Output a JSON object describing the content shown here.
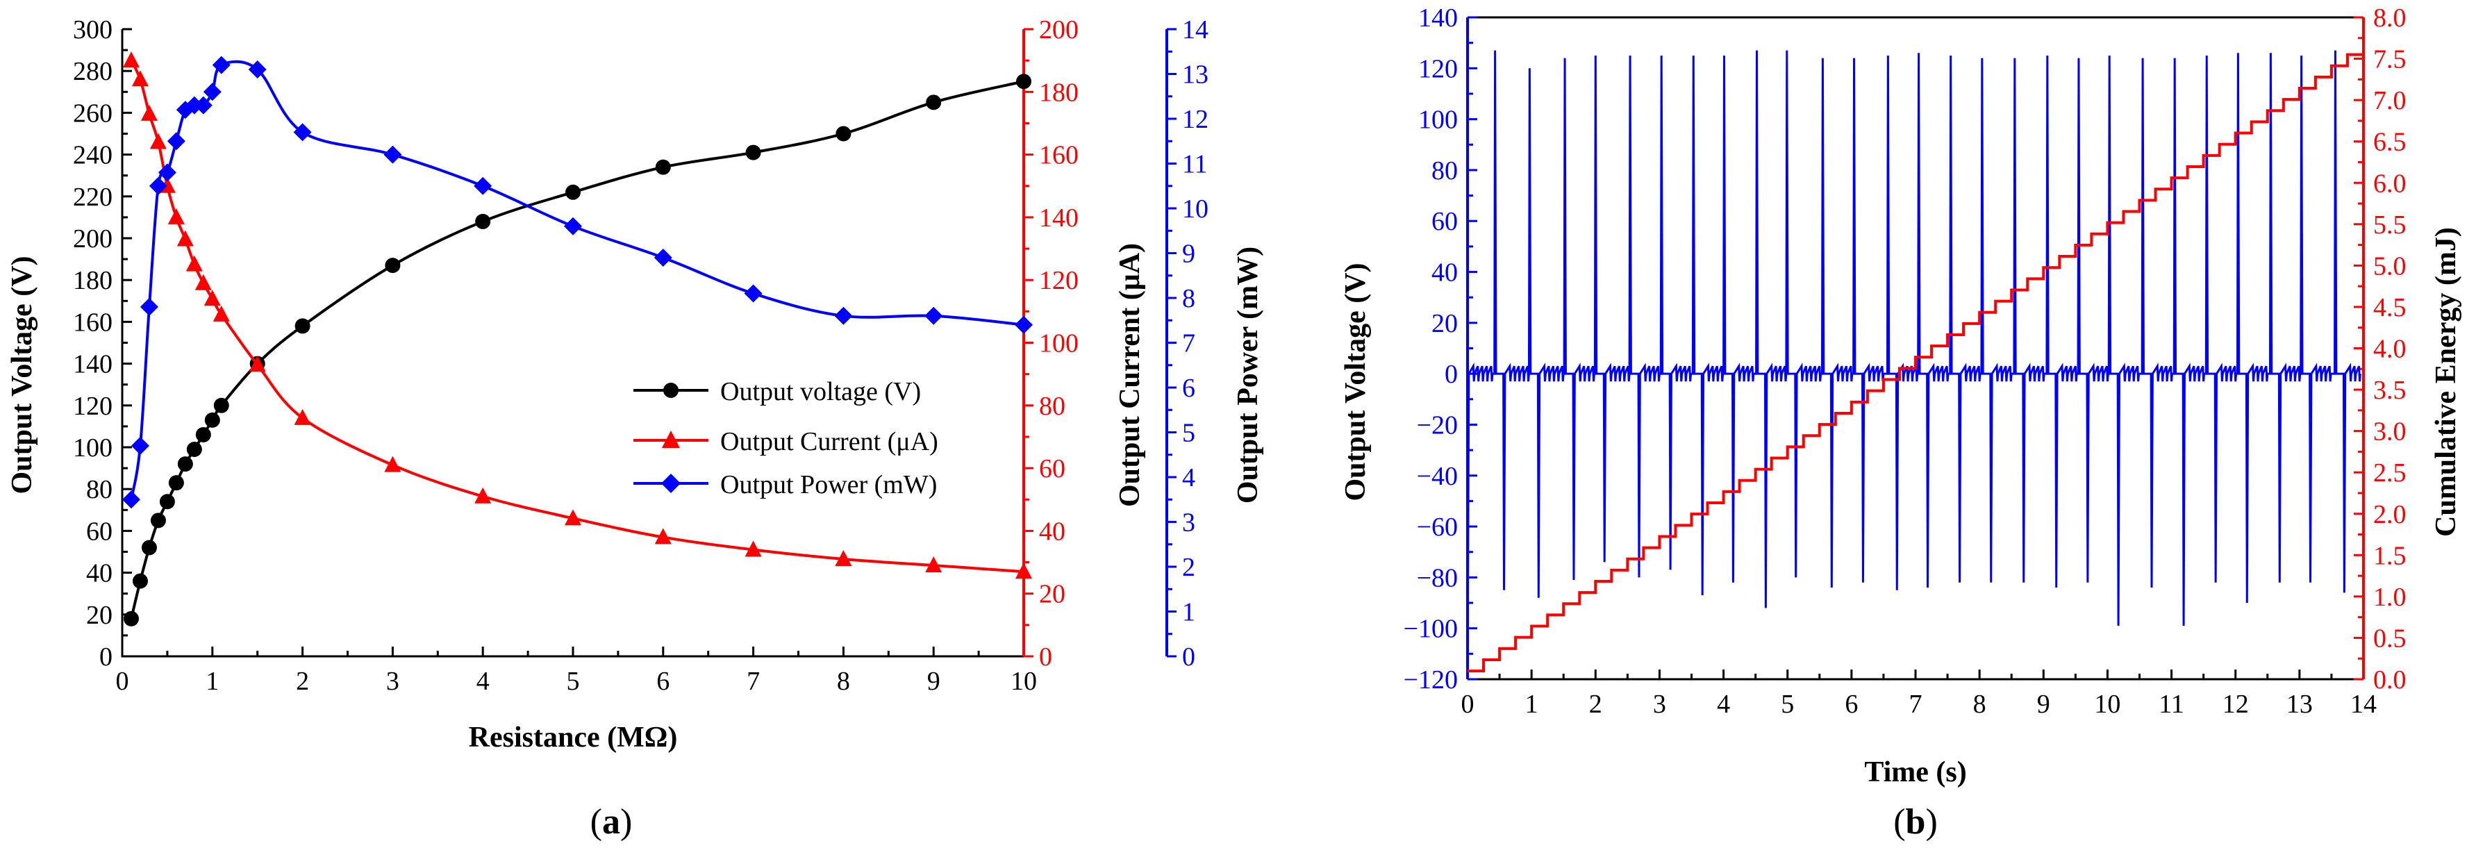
{
  "colors": {
    "voltage": "#000000",
    "current": "#ff0000",
    "power": "#0000ff",
    "axis": "#000000"
  },
  "chart_data": [
    {
      "type": "line",
      "caption": "(a)",
      "caption_letter": "a",
      "xlabel": "Resistance (MΩ)",
      "ylabel_left": "Output Voltage (V)",
      "ylabel_right1": "Output Current (μA)",
      "ylabel_right2": "Output Power (mW)",
      "xlim": [
        0,
        10
      ],
      "ylim_left": [
        0,
        300
      ],
      "ylim_right1": [
        0,
        200
      ],
      "ylim_right2": [
        0,
        14
      ],
      "x_ticks": [
        0,
        1,
        2,
        3,
        4,
        5,
        6,
        7,
        8,
        9,
        10
      ],
      "y_left_ticks": [
        0,
        20,
        40,
        60,
        80,
        100,
        120,
        140,
        160,
        180,
        200,
        220,
        240,
        260,
        280,
        300
      ],
      "y_right1_ticks": [
        0,
        20,
        40,
        60,
        80,
        100,
        120,
        140,
        160,
        180,
        200
      ],
      "y_right2_ticks": [
        0,
        1,
        2,
        3,
        4,
        5,
        6,
        7,
        8,
        9,
        10,
        11,
        12,
        13,
        14
      ],
      "legend_position": "middle-right",
      "series": [
        {
          "name": "Output voltage (V)",
          "axis": "left",
          "color": "#000000",
          "marker": "circle",
          "x": [
            0.1,
            0.2,
            0.3,
            0.4,
            0.5,
            0.6,
            0.7,
            0.8,
            0.9,
            1.0,
            1.1,
            1.5,
            2,
            3,
            4,
            5,
            6,
            7,
            8,
            9,
            10
          ],
          "y": [
            18,
            36,
            52,
            65,
            74,
            83,
            92,
            99,
            106,
            113,
            120,
            140,
            158,
            187,
            208,
            222,
            234,
            241,
            250,
            265,
            275
          ]
        },
        {
          "name": "Output Current (μA)",
          "axis": "right1",
          "color": "#ff0000",
          "marker": "triangle",
          "x": [
            0.1,
            0.2,
            0.3,
            0.4,
            0.5,
            0.6,
            0.7,
            0.8,
            0.9,
            1.0,
            1.1,
            1.5,
            2,
            3,
            4,
            5,
            6,
            7,
            8,
            9,
            10
          ],
          "y": [
            190,
            184,
            173,
            164,
            150,
            140,
            133,
            125,
            119,
            114,
            109,
            93,
            76,
            61,
            51,
            44,
            38,
            34,
            31,
            29,
            27
          ]
        },
        {
          "name": "Output Power (mW)",
          "axis": "right2",
          "color": "#0000ff",
          "marker": "diamond",
          "x": [
            0.1,
            0.2,
            0.3,
            0.4,
            0.5,
            0.6,
            0.7,
            0.8,
            0.9,
            1.0,
            1.1,
            1.5,
            2,
            3,
            4,
            5,
            6,
            7,
            8,
            9,
            10
          ],
          "y": [
            3.5,
            4.7,
            7.8,
            10.5,
            10.8,
            11.5,
            12.2,
            12.3,
            12.3,
            12.6,
            13.2,
            13.1,
            11.7,
            11.2,
            10.5,
            9.6,
            8.9,
            8.1,
            7.6,
            7.6,
            7.4
          ]
        }
      ]
    },
    {
      "type": "line",
      "caption": "(b)",
      "caption_letter": "b",
      "xlabel": "Time (s)",
      "ylabel_left": "Output Voltage (V)",
      "ylabel_right": "Cumulative Energy (mJ)",
      "xlim": [
        0,
        14
      ],
      "ylim_left": [
        -120,
        140
      ],
      "ylim_right": [
        0,
        8.0
      ],
      "x_ticks": [
        0,
        1,
        2,
        3,
        4,
        5,
        6,
        7,
        8,
        9,
        10,
        11,
        12,
        13,
        14
      ],
      "y_left_ticks": [
        -120,
        -100,
        -80,
        -60,
        -40,
        -20,
        0,
        20,
        40,
        60,
        80,
        100,
        120,
        140
      ],
      "y_right_ticks": [
        "0.0",
        "0.5",
        "1.0",
        "1.5",
        "2.0",
        "2.5",
        "3.0",
        "3.5",
        "4.0",
        "4.5",
        "5.0",
        "5.5",
        "6.0",
        "6.5",
        "7.0",
        "7.5",
        "8.0"
      ],
      "voltage_series": {
        "name": "Output Voltage",
        "color": "#0000ff",
        "pulse_times": [
          0.43,
          0.97,
          1.52,
          2.0,
          2.54,
          3.03,
          3.53,
          4.01,
          4.52,
          4.99,
          5.55,
          6.04,
          6.57,
          7.05,
          7.55,
          8.04,
          8.55,
          9.06,
          9.55,
          10.03,
          10.55,
          11.05,
          11.55,
          12.04,
          12.55,
          13.03,
          13.56
        ],
        "peak_values": [
          127,
          120,
          124,
          125,
          125,
          125,
          125,
          125,
          127,
          127,
          124,
          124,
          125,
          126,
          125,
          124,
          124,
          125,
          124,
          125,
          124,
          124,
          125,
          126,
          126,
          125,
          127
        ],
        "trough_values": [
          -85,
          -88,
          -81,
          -74,
          -80,
          -77,
          -87,
          -82,
          -92,
          -80,
          -84,
          -82,
          -85,
          -84,
          -82,
          -82,
          -82,
          -84,
          -82,
          -99,
          -84,
          -99,
          -82,
          -90,
          -82,
          -82,
          -86
        ],
        "baseline": 0
      },
      "energy_series": {
        "name": "Cumulative Energy (mJ)",
        "color": "#ff0000",
        "shape": "staircase",
        "start_value": 0.1,
        "end_value": 7.55,
        "step_interval_s": 0.25,
        "end_time": 14.0
      }
    }
  ]
}
